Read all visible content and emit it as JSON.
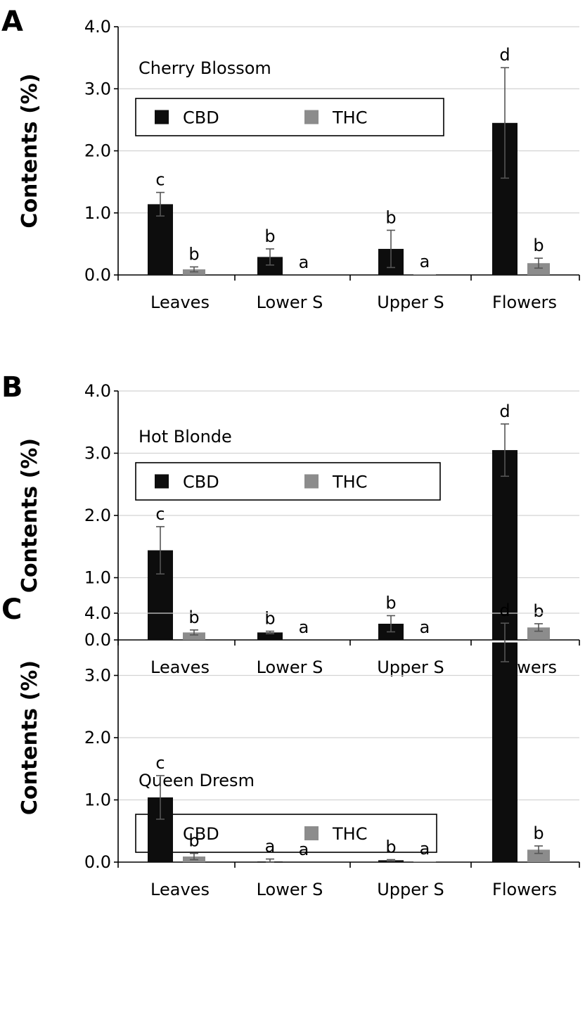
{
  "figure": {
    "colors": {
      "CBD": "#0d0d0d",
      "THC": "#8c8c8c",
      "gridline": "#d3d3d3",
      "errorbar": "#555555"
    }
  },
  "chart_data": [
    {
      "panel": "A",
      "type": "bar",
      "title": "Cherry Blossom",
      "xlabel": "",
      "ylabel": "Contents (%)",
      "ylim": [
        0,
        4.0
      ],
      "yticks": [
        "0.0",
        "1.0",
        "2.0",
        "3.0",
        "4.0"
      ],
      "grid": true,
      "legend_position": "upper-left",
      "categories": [
        "Leaves",
        "Lower S",
        "Upper S",
        "Flowers"
      ],
      "series": [
        {
          "name": "CBD",
          "values": [
            1.14,
            0.29,
            0.42,
            2.45
          ],
          "errors": [
            0.19,
            0.13,
            0.3,
            0.89
          ],
          "labels": [
            "c",
            "b",
            "b",
            "d"
          ]
        },
        {
          "name": "THC",
          "values": [
            0.09,
            0.0,
            0.01,
            0.19
          ],
          "errors": [
            0.04,
            0.0,
            0.0,
            0.08
          ],
          "labels": [
            "b",
            "a",
            "a",
            "b"
          ]
        }
      ]
    },
    {
      "panel": "B",
      "type": "bar",
      "title": "Hot Blonde",
      "xlabel": "",
      "ylabel": "Contents (%)",
      "ylim": [
        0,
        4.0
      ],
      "yticks": [
        "0.0",
        "1.0",
        "2.0",
        "3.0",
        "4.0"
      ],
      "grid": true,
      "legend_position": "upper-left",
      "categories": [
        "Leaves",
        "Lower S",
        "Upper S",
        "Flowers"
      ],
      "series": [
        {
          "name": "CBD",
          "values": [
            1.44,
            0.12,
            0.26,
            3.05
          ],
          "errors": [
            0.38,
            0.02,
            0.13,
            0.42
          ],
          "labels": [
            "c",
            "b",
            "b",
            "d"
          ]
        },
        {
          "name": "THC",
          "values": [
            0.12,
            0.0,
            0.0,
            0.2
          ],
          "errors": [
            0.04,
            0.0,
            0.0,
            0.06
          ],
          "labels": [
            "b",
            "a",
            "a",
            "b"
          ]
        }
      ]
    },
    {
      "panel": "C",
      "type": "bar",
      "title": "Queen Dresm",
      "xlabel": "",
      "ylabel": "Contents (%)",
      "ylim": [
        0,
        4.0
      ],
      "yticks": [
        "0.0",
        "1.0",
        "2.0",
        "3.0",
        "4.0"
      ],
      "grid": true,
      "legend_position": "upper-left",
      "categories": [
        "Leaves",
        "Lower S",
        "Upper S",
        "Flowers"
      ],
      "series": [
        {
          "name": "CBD",
          "values": [
            1.04,
            0.01,
            0.03,
            3.53
          ],
          "errors": [
            0.35,
            0.04,
            0.01,
            0.31
          ],
          "labels": [
            "c",
            "a",
            "b",
            "d"
          ]
        },
        {
          "name": "THC",
          "values": [
            0.09,
            0.0,
            0.01,
            0.2
          ],
          "errors": [
            0.05,
            0.0,
            0.0,
            0.06
          ],
          "labels": [
            "b",
            "a",
            "a",
            "b"
          ]
        }
      ]
    }
  ]
}
